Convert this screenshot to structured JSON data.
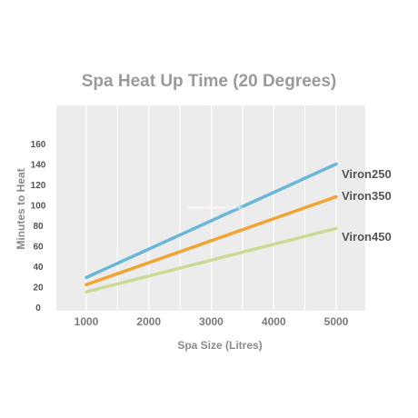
{
  "chart_data": {
    "type": "line",
    "title": "Spa Heat Up Time (20 Degrees)",
    "xlabel": "Spa Size (Litres)",
    "ylabel": "Minutes to Heat",
    "x": [
      1000,
      5000
    ],
    "xticks": [
      "1000",
      "2000",
      "3000",
      "4000",
      "5000"
    ],
    "xlim": [
      500,
      5500
    ],
    "yticks": [
      "0",
      "20",
      "40",
      "60",
      "80",
      "100",
      "120",
      "140",
      "160"
    ],
    "ylim": [
      0,
      160
    ],
    "grid": true,
    "series": [
      {
        "name": "Viron250",
        "color": "#6bb7d9",
        "values": [
          29,
          140
        ]
      },
      {
        "name": "Viron350",
        "color": "#f0a532",
        "values": [
          22,
          108
        ]
      },
      {
        "name": "Viron450",
        "color": "#c9db94",
        "values": [
          15,
          77
        ]
      }
    ],
    "watermark": "HeaterAndSpaParts.com.au"
  }
}
